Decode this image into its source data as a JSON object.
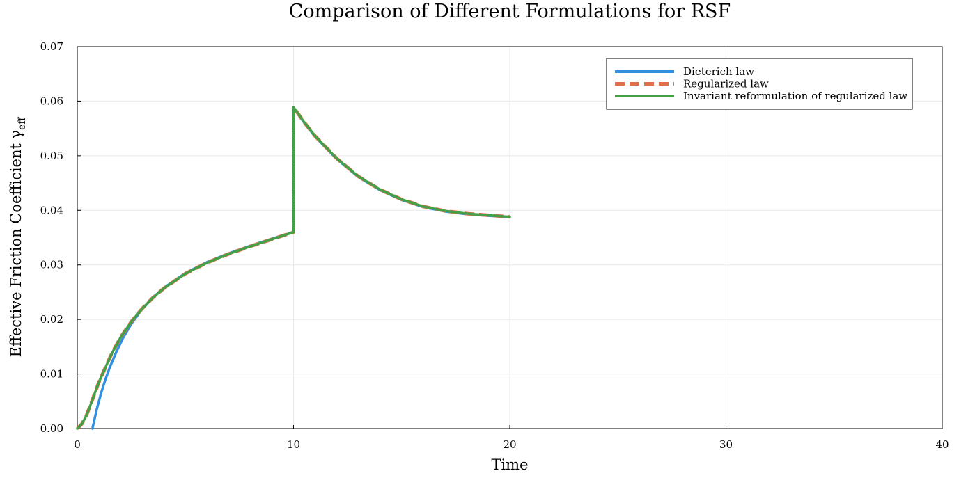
{
  "chart_data": {
    "type": "line",
    "title": "Comparison of Different Formulations for RSF",
    "xlabel": "Time",
    "ylabel": "Effective Friction Coefficient γ",
    "ylabel_subscript": "eff",
    "xlim": [
      0,
      40
    ],
    "ylim": [
      0,
      0.07
    ],
    "xticks": [
      0,
      10,
      20,
      30,
      40
    ],
    "xtick_labels": [
      "0",
      "10",
      "20",
      "30",
      "40"
    ],
    "yticks": [
      0,
      0.01,
      0.02,
      0.03,
      0.04,
      0.05,
      0.06,
      0.07
    ],
    "ytick_labels": [
      "0.00",
      "0.01",
      "0.02",
      "0.03",
      "0.04",
      "0.05",
      "0.06",
      "0.07"
    ],
    "grid": true,
    "legend_position": "top-right",
    "series": [
      {
        "name": "Dieterich law",
        "color": "#2f8fe0",
        "dash": "solid",
        "x": [
          0.7,
          0.9,
          1.1,
          1.3,
          1.5,
          1.8,
          2.1,
          2.5,
          3.0,
          3.5,
          4.0,
          5.0,
          6.0,
          7.0,
          8.0,
          9.0,
          10.0,
          10.0,
          10.5,
          11.0,
          12.0,
          13.0,
          14.0,
          15.0,
          16.0,
          17.0,
          18.0,
          19.0,
          20.0
        ],
        "y": [
          0.0,
          0.0035,
          0.0065,
          0.009,
          0.0112,
          0.014,
          0.0165,
          0.0192,
          0.0219,
          0.024,
          0.0258,
          0.0285,
          0.0305,
          0.0321,
          0.0335,
          0.0348,
          0.036,
          0.0588,
          0.056,
          0.0535,
          0.0494,
          0.0461,
          0.0437,
          0.0419,
          0.0406,
          0.0398,
          0.0393,
          0.039,
          0.0388
        ]
      },
      {
        "name": "Regularized law",
        "color": "#e0704a",
        "dash": "dashed",
        "x": [
          0.0,
          0.2,
          0.4,
          0.6,
          0.8,
          1.0,
          1.3,
          1.6,
          2.0,
          2.5,
          3.0,
          3.5,
          4.0,
          5.0,
          6.0,
          7.0,
          8.0,
          9.0,
          10.0,
          10.0,
          10.5,
          11.0,
          12.0,
          13.0,
          14.0,
          15.0,
          16.0,
          17.0,
          18.0,
          19.0,
          20.0
        ],
        "y": [
          0.0,
          0.0008,
          0.0022,
          0.0042,
          0.0064,
          0.0085,
          0.0112,
          0.0138,
          0.0167,
          0.0196,
          0.022,
          0.024,
          0.0257,
          0.0284,
          0.0304,
          0.032,
          0.0334,
          0.0347,
          0.036,
          0.0589,
          0.0561,
          0.0536,
          0.0495,
          0.0462,
          0.0438,
          0.042,
          0.0407,
          0.0399,
          0.0394,
          0.0391,
          0.0388
        ]
      },
      {
        "name": "Invariant reformulation of regularized law",
        "color": "#44a047",
        "dash": "solid",
        "x": [
          0.0,
          0.2,
          0.4,
          0.6,
          0.8,
          1.0,
          1.3,
          1.6,
          2.0,
          2.5,
          3.0,
          3.5,
          4.0,
          5.0,
          6.0,
          7.0,
          8.0,
          9.0,
          10.0,
          10.0,
          10.5,
          11.0,
          12.0,
          13.0,
          14.0,
          15.0,
          16.0,
          17.0,
          18.0,
          19.0,
          20.0
        ],
        "y": [
          0.0,
          0.0008,
          0.0022,
          0.0042,
          0.0064,
          0.0085,
          0.0112,
          0.0138,
          0.0167,
          0.0196,
          0.022,
          0.024,
          0.0257,
          0.0284,
          0.0304,
          0.032,
          0.0334,
          0.0347,
          0.036,
          0.0589,
          0.0561,
          0.0536,
          0.0495,
          0.0462,
          0.0438,
          0.042,
          0.0407,
          0.0399,
          0.0394,
          0.0391,
          0.0388
        ]
      }
    ]
  }
}
